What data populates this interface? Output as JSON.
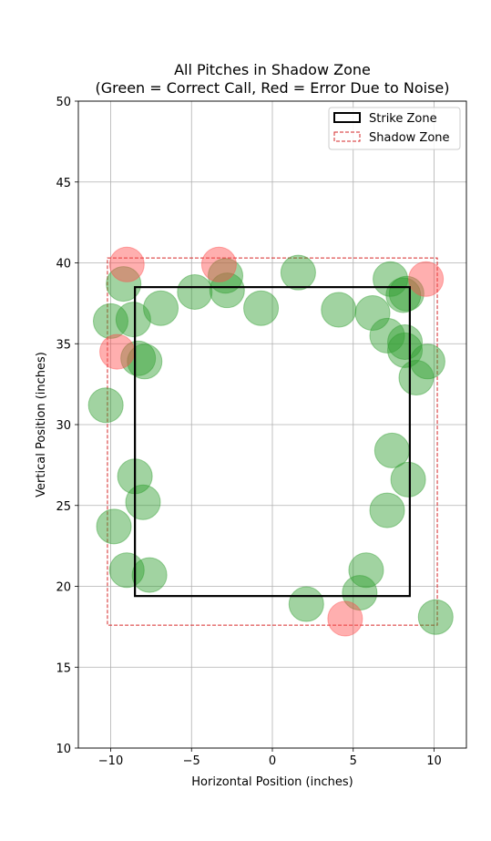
{
  "chart_data": {
    "type": "scatter",
    "title_line1": "All Pitches in Shadow Zone",
    "title_line2": "(Green = Correct Call, Red = Error Due to Noise)",
    "xlabel": "Horizontal Position (inches)",
    "ylabel": "Vertical Position (inches)",
    "xlim": [
      -12,
      12
    ],
    "ylim": [
      10,
      50
    ],
    "x_ticks": [
      -10,
      -5,
      0,
      5,
      10
    ],
    "y_ticks": [
      10,
      15,
      20,
      25,
      30,
      35,
      40,
      45,
      50
    ],
    "grid": true,
    "legend": {
      "position": "top-right",
      "strike_label": "Strike Zone",
      "shadow_label": "Shadow Zone"
    },
    "strike_zone": {
      "x": [
        -8.5,
        8.5
      ],
      "y": [
        19.4,
        38.5
      ]
    },
    "shadow_zone": {
      "x": [
        -10.2,
        10.2
      ],
      "y": [
        17.6,
        40.3
      ]
    },
    "colors": {
      "correct": "#2e9e2e",
      "error": "#ff4d4d",
      "shadow": "#d62728",
      "strike": "#000000"
    },
    "series": [
      {
        "name": "Correct Call",
        "points": [
          [
            -9.2,
            38.7
          ],
          [
            -10.0,
            36.4
          ],
          [
            -8.6,
            36.5
          ],
          [
            -8.3,
            34.1
          ],
          [
            -7.9,
            33.9
          ],
          [
            -6.9,
            37.2
          ],
          [
            -4.8,
            38.2
          ],
          [
            -2.9,
            39.2
          ],
          [
            -2.8,
            38.3
          ],
          [
            -0.7,
            37.2
          ],
          [
            1.6,
            39.4
          ],
          [
            4.1,
            37.1
          ],
          [
            6.2,
            36.9
          ],
          [
            7.3,
            39.0
          ],
          [
            8.3,
            38.1
          ],
          [
            8.1,
            38.0
          ],
          [
            7.1,
            35.5
          ],
          [
            8.2,
            35.1
          ],
          [
            8.2,
            34.6
          ],
          [
            9.6,
            33.9
          ],
          [
            8.9,
            32.9
          ],
          [
            -10.3,
            31.2
          ],
          [
            -8.5,
            26.8
          ],
          [
            -8.0,
            25.2
          ],
          [
            -9.8,
            23.7
          ],
          [
            -9.0,
            21.0
          ],
          [
            -7.6,
            20.7
          ],
          [
            7.4,
            28.4
          ],
          [
            8.4,
            26.6
          ],
          [
            7.1,
            24.7
          ],
          [
            5.8,
            21.0
          ],
          [
            5.4,
            19.6
          ],
          [
            2.1,
            18.9
          ],
          [
            10.1,
            18.1
          ]
        ]
      },
      {
        "name": "Error Due to Noise",
        "points": [
          [
            -9.0,
            39.9
          ],
          [
            -3.3,
            39.9
          ],
          [
            9.5,
            39.0
          ],
          [
            -9.6,
            34.5
          ],
          [
            4.5,
            18.0
          ]
        ]
      }
    ]
  }
}
